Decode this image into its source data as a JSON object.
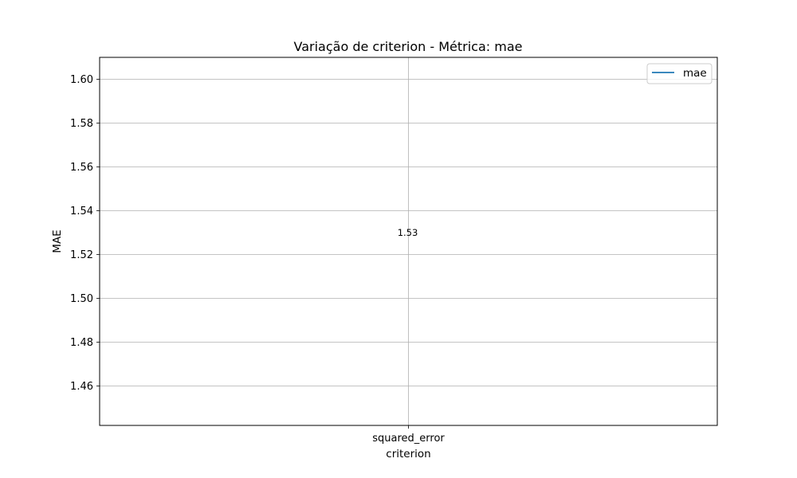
{
  "chart_data": {
    "type": "line",
    "title": "Variação de criterion - Métrica: mae",
    "xlabel": "criterion",
    "ylabel": "MAE",
    "categories": [
      "squared_error"
    ],
    "series": [
      {
        "name": "mae",
        "values": [
          1.53
        ],
        "color": "#1f77b4",
        "data_labels": [
          "1.53"
        ]
      }
    ],
    "ylim": [
      1.442,
      1.61
    ],
    "yticks": [
      1.46,
      1.48,
      1.5,
      1.52,
      1.54,
      1.56,
      1.58,
      1.6
    ],
    "ytick_labels": [
      "1.46",
      "1.48",
      "1.50",
      "1.52",
      "1.54",
      "1.56",
      "1.58",
      "1.60"
    ],
    "grid": true,
    "legend": "top-right"
  }
}
